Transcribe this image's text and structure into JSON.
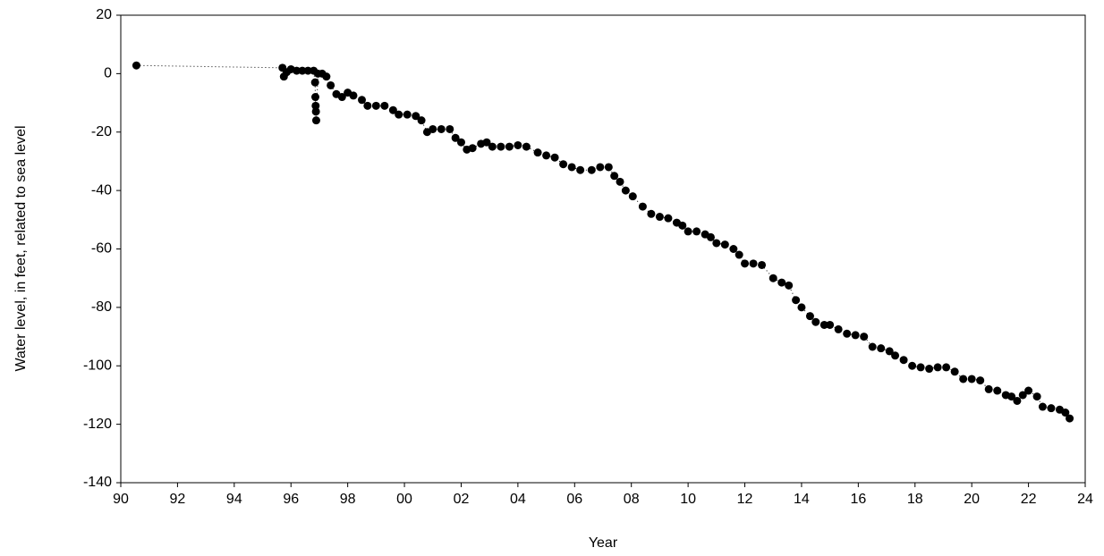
{
  "chart_data": {
    "type": "scatter",
    "x_label": "Year",
    "y_label": "Water level, in feet, related to sea level",
    "color": "#000000",
    "xlim": [
      1990,
      2024
    ],
    "ylim": [
      -140,
      20
    ],
    "xticks": [
      {
        "value": 1990,
        "label": "90"
      },
      {
        "value": 1992,
        "label": "92"
      },
      {
        "value": 1994,
        "label": "94"
      },
      {
        "value": 1996,
        "label": "96"
      },
      {
        "value": 1998,
        "label": "98"
      },
      {
        "value": 2000,
        "label": "00"
      },
      {
        "value": 2002,
        "label": "02"
      },
      {
        "value": 2004,
        "label": "04"
      },
      {
        "value": 2006,
        "label": "06"
      },
      {
        "value": 2008,
        "label": "08"
      },
      {
        "value": 2010,
        "label": "10"
      },
      {
        "value": 2012,
        "label": "12"
      },
      {
        "value": 2014,
        "label": "14"
      },
      {
        "value": 2016,
        "label": "16"
      },
      {
        "value": 2018,
        "label": "18"
      },
      {
        "value": 2020,
        "label": "20"
      },
      {
        "value": 2022,
        "label": "22"
      },
      {
        "value": 2024,
        "label": "24"
      }
    ],
    "yticks": [
      -140,
      -120,
      -100,
      -80,
      -60,
      -40,
      -20,
      0,
      20
    ],
    "x": [
      1990.55,
      1995.7,
      1995.75,
      1995.85,
      1996.0,
      1996.2,
      1996.4,
      1996.6,
      1996.8,
      1996.85,
      1996.86,
      1996.87,
      1996.88,
      1996.89,
      1996.95,
      1997.1,
      1997.25,
      1997.4,
      1997.6,
      1997.8,
      1998.0,
      1998.2,
      1998.5,
      1998.7,
      1999.0,
      1999.3,
      1999.6,
      1999.8,
      2000.1,
      2000.4,
      2000.6,
      2000.8,
      2001.0,
      2001.3,
      2001.6,
      2001.8,
      2002.0,
      2002.2,
      2002.4,
      2002.7,
      2002.9,
      2003.1,
      2003.4,
      2003.7,
      2004.0,
      2004.3,
      2004.7,
      2005.0,
      2005.3,
      2005.6,
      2005.9,
      2006.2,
      2006.6,
      2006.9,
      2007.2,
      2007.4,
      2007.6,
      2007.8,
      2008.05,
      2008.4,
      2008.7,
      2009.0,
      2009.3,
      2009.6,
      2009.8,
      2010.0,
      2010.3,
      2010.6,
      2010.8,
      2011.0,
      2011.3,
      2011.6,
      2011.8,
      2012.0,
      2012.3,
      2012.6,
      2013.0,
      2013.3,
      2013.55,
      2013.8,
      2014.0,
      2014.3,
      2014.5,
      2014.8,
      2015.0,
      2015.3,
      2015.6,
      2015.9,
      2016.2,
      2016.5,
      2016.8,
      2017.1,
      2017.3,
      2017.6,
      2017.9,
      2018.2,
      2018.5,
      2018.8,
      2019.1,
      2019.4,
      2019.7,
      2020.0,
      2020.3,
      2020.6,
      2020.9,
      2021.2,
      2021.4,
      2021.6,
      2021.8,
      2022.0,
      2022.3,
      2022.5,
      2022.8,
      2023.1,
      2023.3,
      2023.45
    ],
    "values": [
      2.8,
      2,
      -1,
      0.5,
      1.5,
      1,
      1,
      1,
      1,
      -3,
      -8,
      -11,
      -13,
      -16,
      0,
      0,
      -1,
      -4,
      -7,
      -8,
      -6.5,
      -7.5,
      -9,
      -11,
      -11,
      -11,
      -12.5,
      -14,
      -14,
      -14.5,
      -16,
      -20,
      -19,
      -19,
      -19,
      -22,
      -23.5,
      -26,
      -25.5,
      -24,
      -23.5,
      -25,
      -25,
      -25,
      -24.5,
      -25,
      -27,
      -28,
      -28.7,
      -31,
      -32,
      -33,
      -33,
      -32,
      -32,
      -35,
      -37,
      -40,
      -42,
      -45.5,
      -48,
      -49,
      -49.5,
      -51,
      -52,
      -54,
      -54,
      -55,
      -56,
      -58,
      -58.5,
      -60,
      -62,
      -65,
      -65,
      -65.5,
      -70,
      -71.5,
      -72.5,
      -77.5,
      -80,
      -83,
      -85,
      -86,
      -86,
      -87.5,
      -89,
      -89.5,
      -90,
      -93.5,
      -94,
      -95,
      -96.5,
      -98,
      -100,
      -100.5,
      -101,
      -100.5,
      -100.5,
      -102,
      -104.5,
      -104.5,
      -105,
      -108,
      -108.5,
      -110,
      -110.5,
      -112,
      -110,
      -108.5,
      -110.5,
      -114,
      -114.5,
      -115,
      -116,
      -118
    ]
  }
}
